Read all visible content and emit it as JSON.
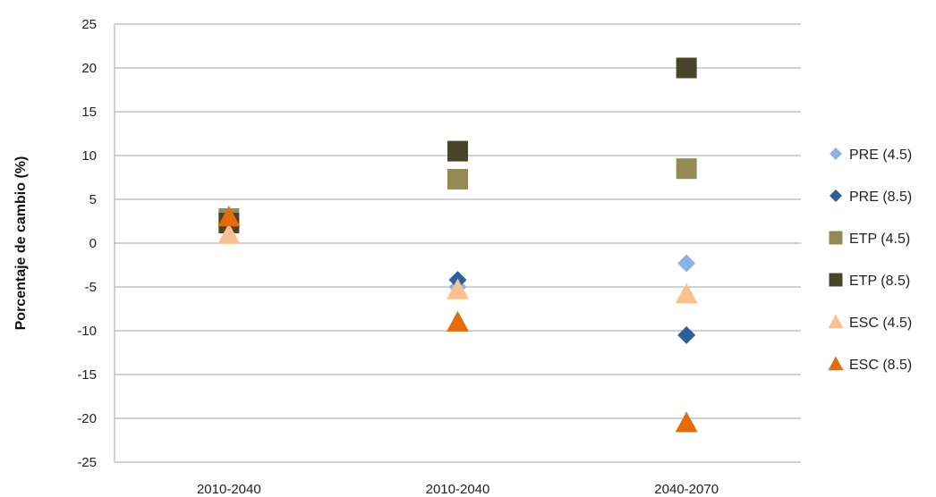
{
  "chart_data": {
    "type": "scatter",
    "categories": [
      "2010-2040",
      "2010-2040",
      "2040-2070"
    ],
    "ylabel": "Porcentaje de cambio (%)",
    "xlabel": "",
    "ylim": [
      -25,
      25
    ],
    "yticks": [
      25,
      20,
      15,
      10,
      5,
      0,
      -5,
      -10,
      -15,
      -20,
      -25
    ],
    "grid": true,
    "legend_position": "right",
    "series": [
      {
        "name": "PRE (4.5)",
        "marker": "diamond",
        "color": "#8db3e2",
        "values": [
          null,
          -5,
          -2.3
        ]
      },
      {
        "name": "PRE (8.5)",
        "marker": "diamond",
        "color": "#2f5f98",
        "values": [
          null,
          -4.2,
          -10.5
        ]
      },
      {
        "name": "ETP (4.5)",
        "marker": "square",
        "color": "#948a54",
        "values": [
          2.8,
          7.3,
          8.5
        ]
      },
      {
        "name": "ETP (8.5)",
        "marker": "square",
        "color": "#4a452a",
        "values": [
          2.3,
          10.5,
          20
        ]
      },
      {
        "name": "ESC (4.5)",
        "marker": "triangle",
        "color": "#fac090",
        "values": [
          1.0,
          -5.3,
          -5.8
        ]
      },
      {
        "name": "ESC (8.5)",
        "marker": "triangle",
        "color": "#e46c0a",
        "values": [
          3.0,
          -9.0,
          -20.5
        ]
      }
    ]
  }
}
